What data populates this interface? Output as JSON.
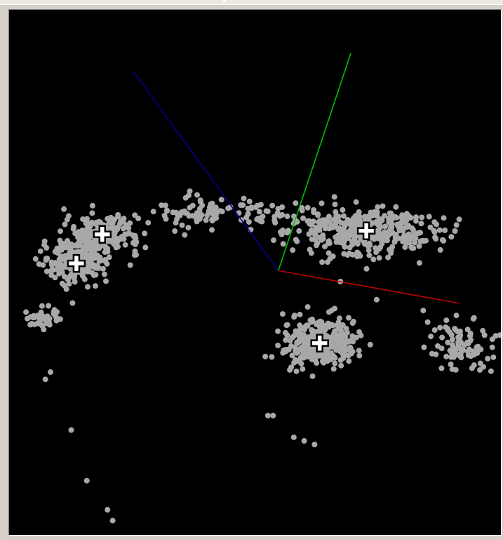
{
  "colors": {
    "background": "#000000",
    "points": "#a8a8a8",
    "centroid": "#ffffff",
    "axis_x": "#c00000",
    "axis_y": "#00cc00",
    "axis_z": "#000099"
  },
  "icons": {
    "centroid_marker": "plus-cross-icon"
  },
  "chart_data": {
    "type": "scatter",
    "dimensions": 3,
    "title": "",
    "xlabel": "",
    "ylabel": "",
    "zlabel": "",
    "clusters": [
      {
        "id": 1,
        "center": [
          -3.4,
          1.0
        ],
        "spread": [
          0.6,
          0.4
        ],
        "count": 220
      },
      {
        "id": 2,
        "center": [
          -3.9,
          0.2
        ],
        "spread": [
          0.55,
          0.45
        ],
        "count": 200
      },
      {
        "id": 3,
        "center": [
          1.7,
          1.1
        ],
        "spread": [
          1.1,
          0.55
        ],
        "count": 380
      },
      {
        "id": 4,
        "center": [
          0.8,
          -2.0
        ],
        "spread": [
          0.6,
          0.55
        ],
        "count": 320
      }
    ],
    "outlier_groups": [
      {
        "center": [
          -1.6,
          1.6
        ],
        "spread": [
          0.55,
          0.35
        ],
        "count": 70
      },
      {
        "center": [
          -0.2,
          1.6
        ],
        "spread": [
          0.55,
          0.4
        ],
        "count": 45
      },
      {
        "center": [
          -4.5,
          -1.3
        ],
        "spread": [
          0.3,
          0.25
        ],
        "count": 40
      },
      {
        "center": [
          3.5,
          -2.0
        ],
        "spread": [
          0.55,
          0.6
        ],
        "count": 90
      }
    ],
    "scattered_points": [
      [
        -4.4,
        -2.8
      ],
      [
        -4.5,
        -3.0
      ],
      [
        -4.0,
        -4.4
      ],
      [
        -3.7,
        -5.8
      ],
      [
        -3.3,
        -6.6
      ],
      [
        -3.2,
        -6.9
      ],
      [
        -0.2,
        -4.0
      ],
      [
        -0.1,
        -4.0
      ],
      [
        0.3,
        -4.6
      ],
      [
        0.5,
        -4.7
      ],
      [
        0.7,
        -4.8
      ],
      [
        1.9,
        -0.8
      ],
      [
        1.2,
        -0.3
      ],
      [
        4.2,
        -1.8
      ],
      [
        4.6,
        -2.7
      ],
      [
        2.8,
        -1.1
      ]
    ],
    "centroids": [
      {
        "cluster": 1,
        "x": -3.4,
        "y": 1.0
      },
      {
        "cluster": 2,
        "x": -3.9,
        "y": 0.2
      },
      {
        "cluster": 3,
        "x": 1.7,
        "y": 1.1
      },
      {
        "cluster": 4,
        "x": 0.8,
        "y": -2.0
      }
    ],
    "axes": {
      "origin": [
        0,
        0
      ],
      "x_end": [
        3.5,
        -0.9
      ],
      "y_end": [
        1.4,
        6.0
      ],
      "z_end": [
        -2.8,
        5.5
      ]
    },
    "xlim": [
      -5.2,
      4.3
    ],
    "ylim": [
      -7.3,
      7.2
    ],
    "grid": false,
    "legend": "none"
  }
}
